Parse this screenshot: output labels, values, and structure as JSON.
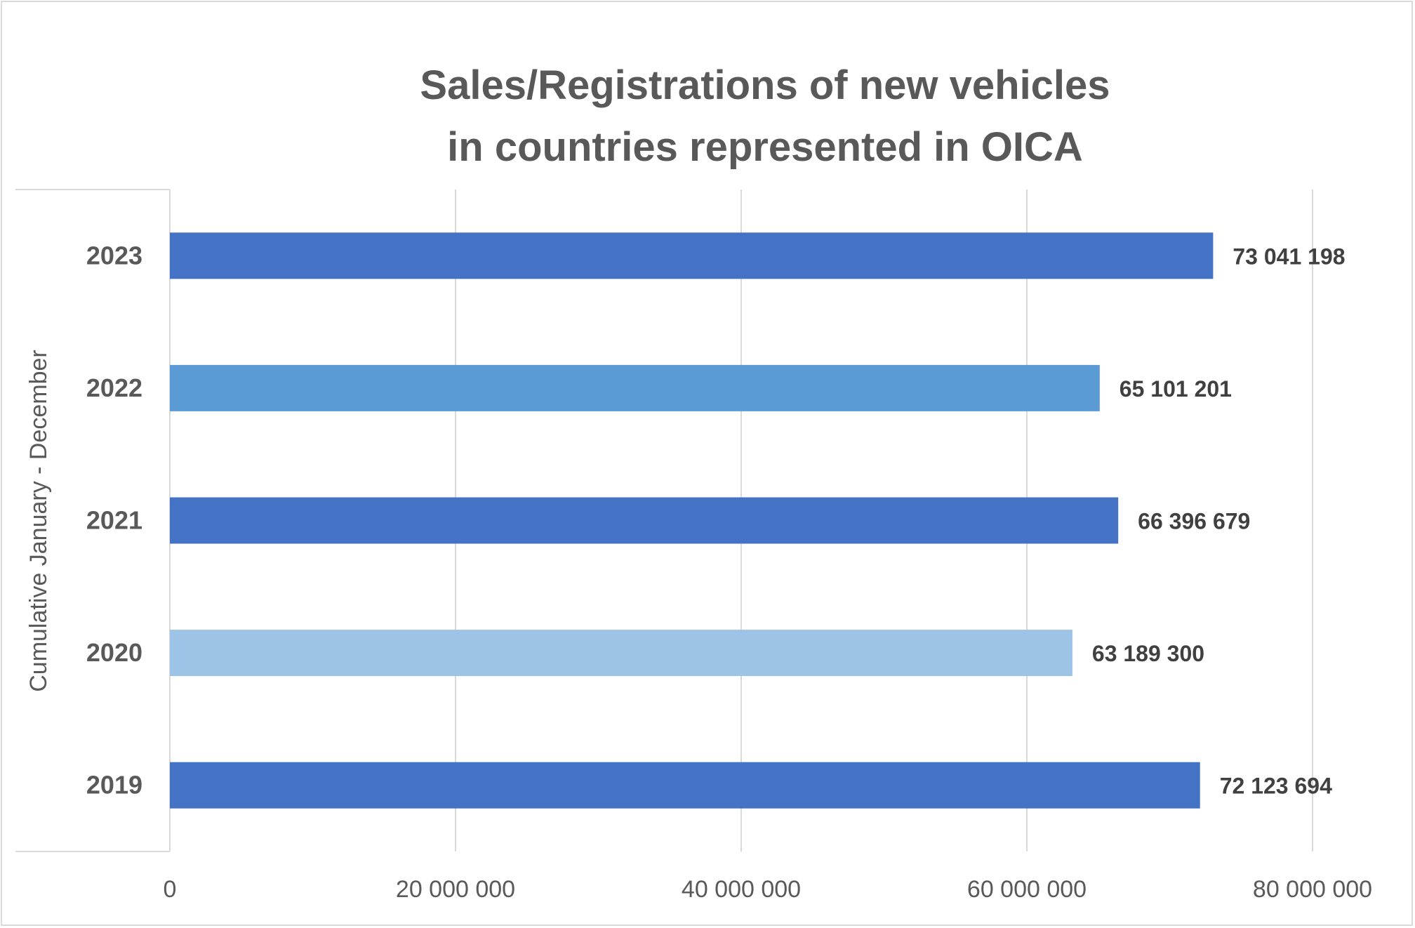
{
  "chart_data": {
    "type": "bar",
    "orientation": "horizontal",
    "title": [
      "Sales/Registrations of new vehicles",
      "in countries represented in OICA"
    ],
    "ylabel": "Cumulative January - December",
    "xlabel": "",
    "categories": [
      "2023",
      "2022",
      "2021",
      "2020",
      "2019"
    ],
    "values": [
      73041198,
      65101201,
      66396679,
      63189300,
      72123694
    ],
    "value_labels": [
      "73 041 198",
      "65 101 201",
      "66 396 679",
      "63 189 300",
      "72 123 694"
    ],
    "colors": [
      "#4472c4",
      "#5b9bd5",
      "#4472c4",
      "#9dc3e6",
      "#4472c4"
    ],
    "xlim": [
      0,
      80000000
    ],
    "xticks": [
      0,
      20000000,
      40000000,
      60000000,
      80000000
    ],
    "xtick_labels": [
      "0",
      "20 000 000",
      "40 000 000",
      "60 000 000",
      "80 000 000"
    ],
    "grid": true,
    "legend": "none"
  }
}
